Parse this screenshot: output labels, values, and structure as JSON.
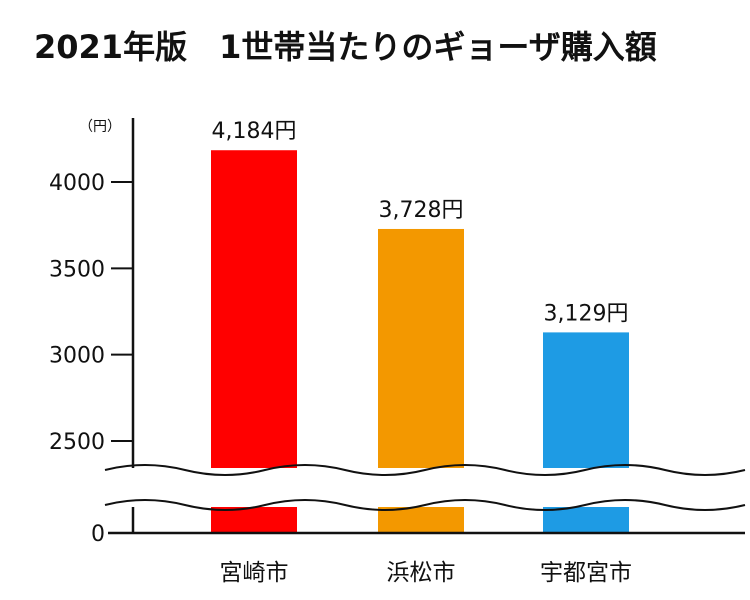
{
  "title": "2021年版　1世帯当たりのギョーザ購入額",
  "chart_data": {
    "type": "bar",
    "title": "2021年版　1世帯当たりのギョーザ購入額",
    "unit_label": "（円）",
    "categories": [
      "宮崎市",
      "浜松市",
      "宇都宮市"
    ],
    "values": [
      4184,
      3728,
      3129
    ],
    "data_labels": [
      "4,184円",
      "3,728円",
      "3,129円"
    ],
    "colors": [
      "#ff0000",
      "#f39800",
      "#1e9be4"
    ],
    "yticks": [
      0,
      2500,
      3000,
      3500,
      4000
    ],
    "ytick_labels": [
      "0",
      "2500",
      "3000",
      "3500",
      "4000"
    ],
    "ylim": [
      2500,
      4200
    ],
    "axis_break": true,
    "grid": false
  }
}
